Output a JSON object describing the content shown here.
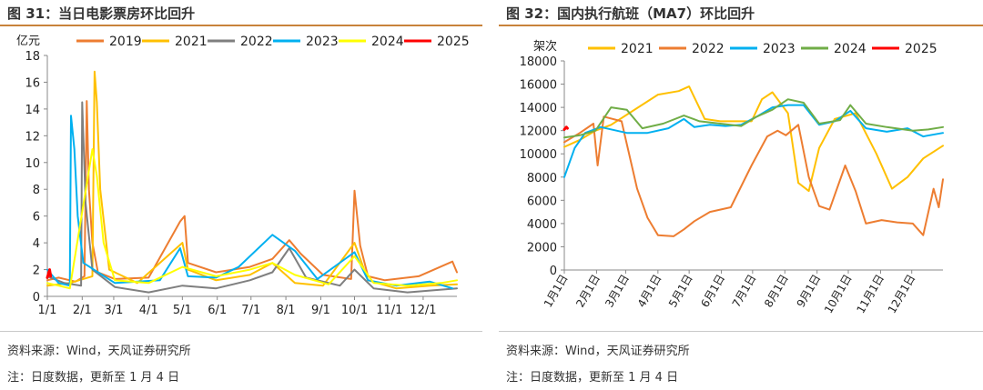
{
  "chart_data": [
    {
      "type": "line",
      "title": "图 31：当日电影票房环比回升",
      "ylabel": "亿元",
      "ylim": [
        0,
        18
      ],
      "yticks": [
        "0",
        "2",
        "4",
        "6",
        "8",
        "10",
        "12",
        "14",
        "16",
        "18"
      ],
      "xticks": [
        "1/1",
        "2/1",
        "3/1",
        "4/1",
        "5/1",
        "6/1",
        "7/1",
        "8/1",
        "9/1",
        "10/1",
        "11/1",
        "12/1"
      ],
      "legend_position": "top",
      "grid": false,
      "series": [
        {
          "name": "2019",
          "color": "#ed7d31",
          "values": [
            [
              0,
              1.2
            ],
            [
              10,
              1.4
            ],
            [
              25,
              1.1
            ],
            [
              33,
              1.5
            ],
            [
              35,
              14.6
            ],
            [
              37,
              8
            ],
            [
              40,
              4
            ],
            [
              45,
              1.8
            ],
            [
              60,
              1.3
            ],
            [
              90,
              1.4
            ],
            [
              118,
              5.6
            ],
            [
              122,
              6.0
            ],
            [
              125,
              2.5
            ],
            [
              150,
              1.8
            ],
            [
              180,
              2.2
            ],
            [
              200,
              2.8
            ],
            [
              215,
              4.2
            ],
            [
              225,
              3.2
            ],
            [
              245,
              1.6
            ],
            [
              270,
              1.3
            ],
            [
              273,
              7.9
            ],
            [
              278,
              3.8
            ],
            [
              285,
              1.5
            ],
            [
              300,
              1.2
            ],
            [
              330,
              1.5
            ],
            [
              360,
              2.6
            ],
            [
              364,
              1.8
            ]
          ]
        },
        {
          "name": "2021",
          "color": "#ffc000",
          "values": [
            [
              0,
              0.8
            ],
            [
              20,
              1.0
            ],
            [
              40,
              1.5
            ],
            [
              42,
              16.8
            ],
            [
              44,
              14.5
            ],
            [
              47,
              8
            ],
            [
              55,
              2.0
            ],
            [
              80,
              1.0
            ],
            [
              120,
              4.0
            ],
            [
              125,
              2.0
            ],
            [
              150,
              1.2
            ],
            [
              180,
              1.6
            ],
            [
              200,
              2.5
            ],
            [
              220,
              1.0
            ],
            [
              245,
              0.8
            ],
            [
              273,
              4.0
            ],
            [
              285,
              1.2
            ],
            [
              310,
              0.6
            ],
            [
              340,
              0.8
            ],
            [
              364,
              0.9
            ]
          ]
        },
        {
          "name": "2022",
          "color": "#7f7f7f",
          "values": [
            [
              0,
              1.5
            ],
            [
              15,
              1.0
            ],
            [
              30,
              0.8
            ],
            [
              31,
              14.5
            ],
            [
              34,
              7.0
            ],
            [
              40,
              2.0
            ],
            [
              60,
              0.7
            ],
            [
              90,
              0.3
            ],
            [
              120,
              0.8
            ],
            [
              150,
              0.6
            ],
            [
              180,
              1.2
            ],
            [
              200,
              1.8
            ],
            [
              215,
              3.6
            ],
            [
              230,
              1.4
            ],
            [
              260,
              0.8
            ],
            [
              273,
              2.0
            ],
            [
              290,
              0.6
            ],
            [
              320,
              0.3
            ],
            [
              350,
              0.5
            ],
            [
              364,
              0.6
            ]
          ]
        },
        {
          "name": "2023",
          "color": "#00b0f0",
          "values": [
            [
              0,
              2.0
            ],
            [
              10,
              1.0
            ],
            [
              20,
              0.8
            ],
            [
              21,
              13.5
            ],
            [
              24,
              11
            ],
            [
              27,
              6
            ],
            [
              32,
              2.5
            ],
            [
              60,
              1.0
            ],
            [
              100,
              1.2
            ],
            [
              118,
              3.6
            ],
            [
              125,
              1.5
            ],
            [
              150,
              1.4
            ],
            [
              170,
              2.2
            ],
            [
              200,
              4.6
            ],
            [
              220,
              3.4
            ],
            [
              240,
              1.3
            ],
            [
              273,
              3.3
            ],
            [
              285,
              1.2
            ],
            [
              310,
              0.8
            ],
            [
              340,
              1.1
            ],
            [
              360,
              0.6
            ]
          ]
        },
        {
          "name": "2024",
          "color": "#ffff00",
          "values": [
            [
              0,
              1.0
            ],
            [
              20,
              0.6
            ],
            [
              40,
              11.0
            ],
            [
              44,
              9.0
            ],
            [
              50,
              4.0
            ],
            [
              60,
              1.2
            ],
            [
              90,
              1.0
            ],
            [
              120,
              2.2
            ],
            [
              150,
              1.5
            ],
            [
              180,
              2.0
            ],
            [
              200,
              2.5
            ],
            [
              220,
              1.6
            ],
            [
              250,
              0.9
            ],
            [
              273,
              3.0
            ],
            [
              290,
              1.0
            ],
            [
              320,
              0.8
            ],
            [
              350,
              1.0
            ],
            [
              364,
              1.2
            ]
          ]
        },
        {
          "name": "2025",
          "color": "#ff0000",
          "values": [
            [
              0,
              1.4
            ],
            [
              2,
              2.0
            ],
            [
              3,
              1.5
            ]
          ]
        }
      ]
    },
    {
      "type": "line",
      "title": "图 32：国内执行航班（MA7）环比回升",
      "ylabel": "架次",
      "ylim": [
        0,
        18000
      ],
      "yticks": [
        "0",
        "2000",
        "4000",
        "6000",
        "8000",
        "10000",
        "12000",
        "14000",
        "16000",
        "18000"
      ],
      "xticks": [
        "1月1日",
        "2月1日",
        "3月1日",
        "4月1日",
        "5月1日",
        "6月1日",
        "7月1日",
        "8月1日",
        "9月1日",
        "10月1日",
        "11月1日",
        "12月1日"
      ],
      "legend_position": "top",
      "grid": false,
      "series": [
        {
          "name": "2021",
          "color": "#ffc000",
          "values": [
            [
              0,
              10600
            ],
            [
              15,
              11200
            ],
            [
              30,
              12000
            ],
            [
              45,
              12500
            ],
            [
              90,
              15100
            ],
            [
              110,
              15400
            ],
            [
              120,
              15800
            ],
            [
              135,
              13000
            ],
            [
              150,
              12800
            ],
            [
              180,
              12800
            ],
            [
              190,
              14700
            ],
            [
              200,
              15300
            ],
            [
              215,
              13500
            ],
            [
              225,
              7500
            ],
            [
              235,
              6800
            ],
            [
              245,
              10500
            ],
            [
              260,
              13000
            ],
            [
              280,
              13500
            ],
            [
              300,
              10000
            ],
            [
              315,
              7000
            ],
            [
              330,
              8000
            ],
            [
              345,
              9600
            ],
            [
              364,
              10700
            ]
          ]
        },
        {
          "name": "2022",
          "color": "#ed7d31",
          "values": [
            [
              0,
              11000
            ],
            [
              15,
              11800
            ],
            [
              28,
              12600
            ],
            [
              32,
              9000
            ],
            [
              38,
              13200
            ],
            [
              55,
              12800
            ],
            [
              70,
              7000
            ],
            [
              80,
              4500
            ],
            [
              90,
              3000
            ],
            [
              105,
              2900
            ],
            [
              115,
              3500
            ],
            [
              125,
              4200
            ],
            [
              140,
              5000
            ],
            [
              160,
              5400
            ],
            [
              180,
              9000
            ],
            [
              195,
              11500
            ],
            [
              205,
              12000
            ],
            [
              213,
              11600
            ],
            [
              225,
              12500
            ],
            [
              235,
              8000
            ],
            [
              245,
              5500
            ],
            [
              255,
              5200
            ],
            [
              270,
              9000
            ],
            [
              280,
              6800
            ],
            [
              290,
              4000
            ],
            [
              305,
              4300
            ],
            [
              320,
              4100
            ],
            [
              335,
              4000
            ],
            [
              345,
              3000
            ],
            [
              355,
              7000
            ],
            [
              360,
              5400
            ],
            [
              364,
              7800
            ]
          ]
        },
        {
          "name": "2023",
          "color": "#00b0f0",
          "values": [
            [
              0,
              8000
            ],
            [
              10,
              10500
            ],
            [
              20,
              11800
            ],
            [
              35,
              12300
            ],
            [
              60,
              11800
            ],
            [
              80,
              11800
            ],
            [
              100,
              12200
            ],
            [
              115,
              13000
            ],
            [
              125,
              12300
            ],
            [
              140,
              12500
            ],
            [
              155,
              12400
            ],
            [
              170,
              12500
            ],
            [
              185,
              13200
            ],
            [
              200,
              14000
            ],
            [
              215,
              14200
            ],
            [
              230,
              14200
            ],
            [
              245,
              12500
            ],
            [
              260,
              12800
            ],
            [
              275,
              13700
            ],
            [
              290,
              12200
            ],
            [
              310,
              11900
            ],
            [
              330,
              12200
            ],
            [
              345,
              11500
            ],
            [
              364,
              11800
            ]
          ]
        },
        {
          "name": "2024",
          "color": "#70ad47",
          "values": [
            [
              0,
              11400
            ],
            [
              15,
              11600
            ],
            [
              30,
              12000
            ],
            [
              45,
              14000
            ],
            [
              60,
              13800
            ],
            [
              75,
              12200
            ],
            [
              95,
              12600
            ],
            [
              115,
              13300
            ],
            [
              130,
              12800
            ],
            [
              150,
              12600
            ],
            [
              170,
              12400
            ],
            [
              185,
              13200
            ],
            [
              200,
              13800
            ],
            [
              215,
              14700
            ],
            [
              230,
              14400
            ],
            [
              245,
              12600
            ],
            [
              265,
              12900
            ],
            [
              275,
              14200
            ],
            [
              290,
              12600
            ],
            [
              310,
              12300
            ],
            [
              335,
              12000
            ],
            [
              350,
              12100
            ],
            [
              364,
              12300
            ]
          ]
        },
        {
          "name": "2025",
          "color": "#ff0000",
          "values": [
            [
              0,
              12100
            ],
            [
              2,
              12300
            ],
            [
              3,
              12200
            ]
          ]
        }
      ]
    }
  ],
  "left": {
    "title": "图 31：当日电影票房环比回升",
    "source": "资料来源：Wind，天风证券研究所",
    "note": "注：日度数据，更新至 1 月 4 日"
  },
  "right": {
    "title": "图 32：国内执行航班（MA7）环比回升",
    "source": "资料来源：Wind，天风证券研究所",
    "note": "注：日度数据，更新至 1 月 4 日"
  }
}
